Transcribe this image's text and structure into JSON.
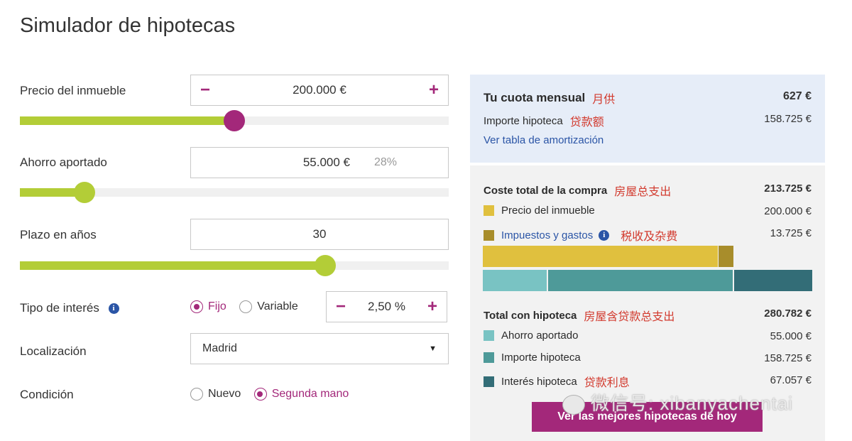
{
  "page": {
    "title": "Simulador de hipotecas"
  },
  "colors": {
    "accent": "#a3287a",
    "slider": "#b3cd37",
    "link": "#2b55a6",
    "annotation": "#d23a2e"
  },
  "form": {
    "precio": {
      "label": "Precio del inmueble",
      "minus": "−",
      "plus": "+",
      "value": "200.000 €",
      "slider_level": 0.5
    },
    "ahorro": {
      "label": "Ahorro aportado",
      "value": "55.000 €",
      "percent": "28%",
      "slider_level": 0.15
    },
    "plazo": {
      "label": "Plazo en años",
      "value": "30",
      "slider_level": 0.71
    },
    "interes": {
      "label": "Tipo de interés",
      "info": "i",
      "option_fijo": "Fijo",
      "option_variable": "Variable",
      "selected": "Fijo",
      "minus": "−",
      "plus": "+",
      "value": "2,50 %"
    },
    "localizacion": {
      "label": "Localización",
      "value": "Madrid",
      "caret": "▼"
    },
    "condicion": {
      "label": "Condición",
      "option_nuevo": "Nuevo",
      "option_segunda": "Segunda mano",
      "selected": "Segunda mano"
    }
  },
  "summary": {
    "cuota_label": "Tu cuota mensual",
    "cuota_cn": "月供",
    "cuota_value": "627 €",
    "importe_label": "Importe hipoteca",
    "importe_cn": "贷款额",
    "importe_value": "158.725 €",
    "tabla_link": "Ver tabla de amortización"
  },
  "coste": {
    "label": "Coste total de la compra",
    "cn": "房屋总支出",
    "value": "213.725 €",
    "items": [
      {
        "label": "Precio del inmueble",
        "value": "200.000 €",
        "color": "#e0c03e"
      },
      {
        "label": "Impuestos y gastos",
        "info": "i",
        "cn": "税收及杂费",
        "value": "13.725 €",
        "color": "#a88d2b"
      }
    ]
  },
  "total": {
    "label": "Total con hipoteca",
    "cn": "房屋含贷款总支出",
    "value": "280.782 €",
    "items": [
      {
        "label": "Ahorro aportado",
        "value": "55.000 €",
        "color": "#79c3c3"
      },
      {
        "label": "Importe hipoteca",
        "value": "158.725 €",
        "color": "#4e9a99"
      },
      {
        "label": "Interés hipoteca",
        "cn": "贷款利息",
        "value": "67.057 €",
        "color": "#336d77"
      }
    ]
  },
  "cta": {
    "label": "Ver las mejores hipotecas de hoy"
  },
  "watermark": {
    "text": "微信号: xibanyachentai"
  }
}
